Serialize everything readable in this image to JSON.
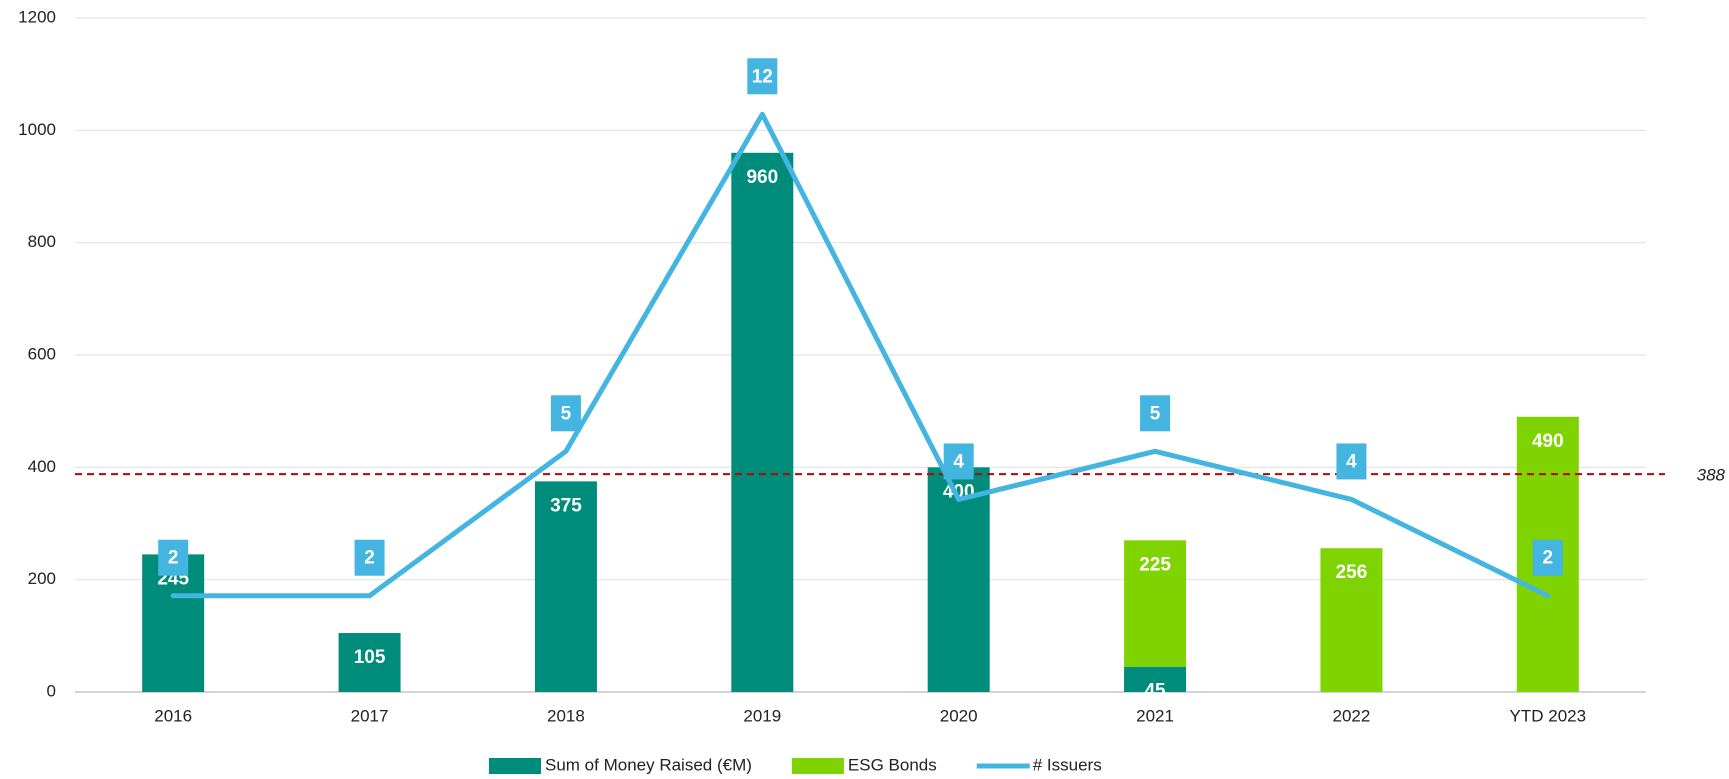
{
  "chart_data": {
    "type": "bar",
    "categories": [
      "2016",
      "2017",
      "2018",
      "2019",
      "2020",
      "2021",
      "2022",
      "YTD 2023"
    ],
    "series": [
      {
        "name": "Sum of Money Raised (€M)",
        "color": "#008c7b",
        "values": [
          245,
          105,
          375,
          960,
          400,
          45,
          null,
          null
        ]
      },
      {
        "name": "ESG Bonds",
        "color": "#7ed300",
        "values": [
          null,
          null,
          null,
          null,
          null,
          225,
          256,
          490
        ]
      },
      {
        "name": "# Issuers",
        "type": "line",
        "axis": "y2",
        "color": "#44b4e0",
        "values": [
          2,
          2,
          5,
          12,
          4,
          5,
          4,
          2
        ]
      }
    ],
    "stacked": true,
    "ylim": [
      0,
      1200
    ],
    "yticks": [
      0,
      200,
      400,
      600,
      800,
      1000,
      1200
    ],
    "y2lim": [
      0,
      14
    ],
    "grid": true,
    "legend": "bottom",
    "reference_line": {
      "value": 388,
      "color": "#c00000"
    }
  }
}
